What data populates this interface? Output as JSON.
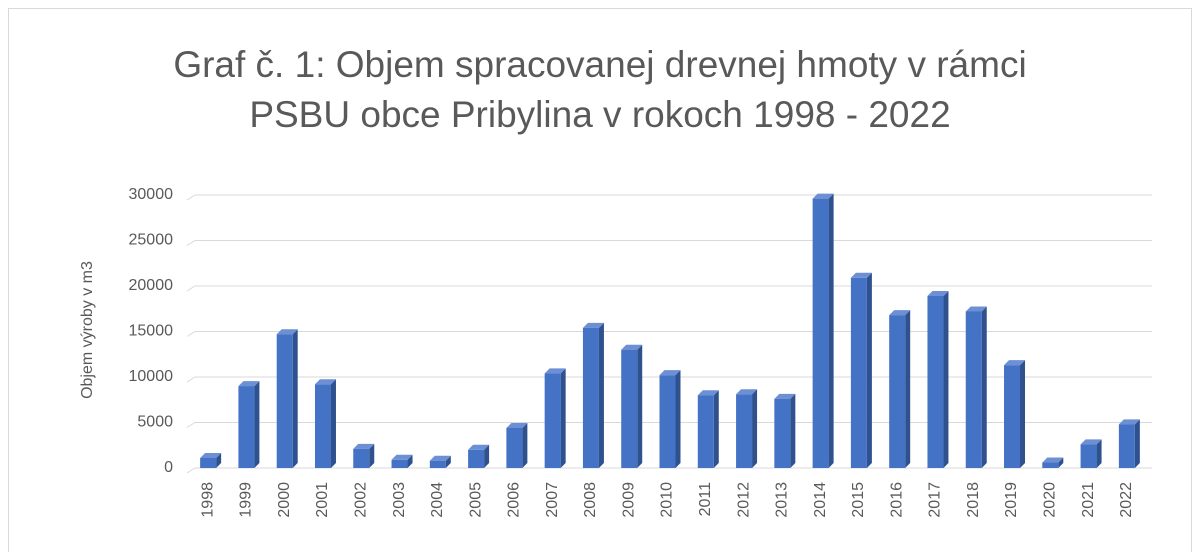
{
  "chart_data": {
    "type": "bar3d",
    "title": "Graf č. 1: Objem spracovanej drevnej hmoty v rámci PSBU obce Pribylina v rokoch 1998 - 2022",
    "y_label": "Objem výroby v m3",
    "categories": [
      "1998",
      "1999",
      "2000",
      "2001",
      "2002",
      "2003",
      "2004",
      "2005",
      "2006",
      "2007",
      "2008",
      "2009",
      "2010",
      "2011",
      "2012",
      "2013",
      "2014",
      "2015",
      "2016",
      "2017",
      "2018",
      "2019",
      "2020",
      "2021",
      "2022"
    ],
    "values": [
      1100,
      9000,
      14700,
      9200,
      2100,
      900,
      800,
      2000,
      4400,
      10400,
      15400,
      13000,
      10200,
      8000,
      8100,
      7600,
      29600,
      20900,
      16800,
      18900,
      17200,
      11300,
      600,
      2600,
      4800
    ],
    "color": "#4472c4",
    "ylim": [
      0,
      30000
    ],
    "yticks": [
      0,
      5000,
      10000,
      15000,
      20000,
      25000,
      30000
    ],
    "grid": true
  }
}
